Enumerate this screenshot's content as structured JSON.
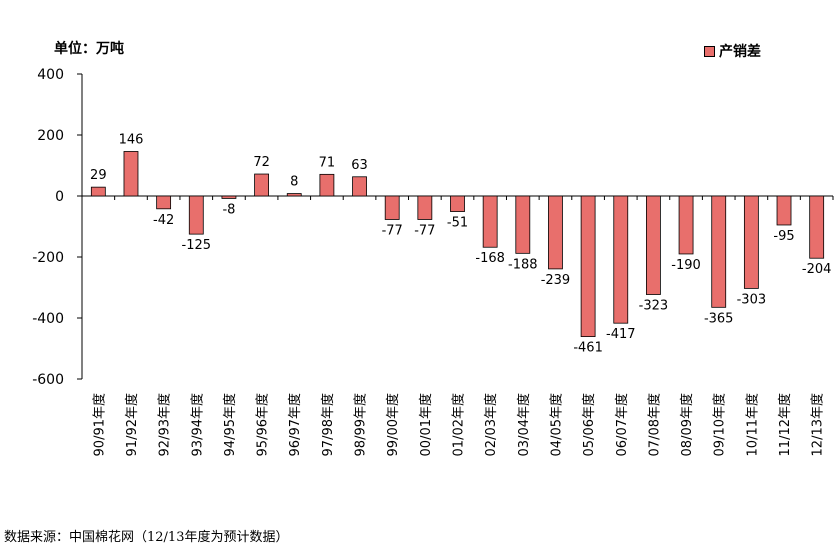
{
  "unit_label": "单位：万吨",
  "source_note": "数据来源：中国棉花网（12/13年度为预计数据）",
  "chart_data": {
    "type": "bar",
    "categories": [
      "90/91年度",
      "91/92年度",
      "92/93年度",
      "93/94年度",
      "94/95年度",
      "95/96年度",
      "96/97年度",
      "97/98年度",
      "98/99年度",
      "99/00年度",
      "00/01年度",
      "01/02年度",
      "02/03年度",
      "03/04年度",
      "04/05年度",
      "05/06年度",
      "06/07年度",
      "07/08年度",
      "08/09年度",
      "09/10年度",
      "10/11年度",
      "11/12年度",
      "12/13年度"
    ],
    "series": [
      {
        "name": "产销差",
        "values": [
          29,
          146,
          -42,
          -125,
          -8,
          72,
          8,
          71,
          63,
          -77,
          -77,
          -51,
          -168,
          -188,
          -239,
          -461,
          -417,
          -323,
          -190,
          -365,
          -303,
          -95,
          -204
        ]
      }
    ],
    "ylim": [
      -600,
      400
    ],
    "yticks": [
      400,
      200,
      0,
      -200,
      -400,
      -600
    ],
    "bar_color": "#e86f6c",
    "legend_position": "top-right",
    "grid": false
  }
}
